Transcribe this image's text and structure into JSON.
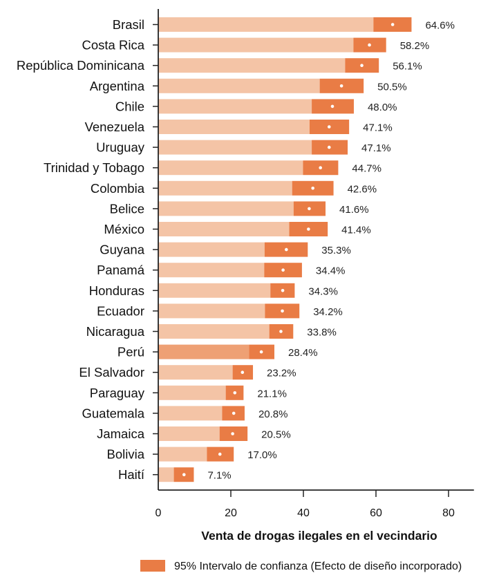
{
  "chart_data": {
    "type": "bar",
    "orientation": "horizontal",
    "categories": [
      "Brasil",
      "Costa Rica",
      "República Dominicana",
      "Argentina",
      "Chile",
      "Venezuela",
      "Uruguay",
      "Trinidad y Tobago",
      "Colombia",
      "Belice",
      "México",
      "Guyana",
      "Panamá",
      "Honduras",
      "Ecuador",
      "Nicaragua",
      "Perú",
      "El Salvador",
      "Paraguay",
      "Guatemala",
      "Jamaica",
      "Bolivia",
      "Haití"
    ],
    "values": [
      64.6,
      58.2,
      56.1,
      50.5,
      48.0,
      47.1,
      47.1,
      44.7,
      42.6,
      41.6,
      41.4,
      35.3,
      34.4,
      34.3,
      34.2,
      33.8,
      28.4,
      23.2,
      21.1,
      20.8,
      20.5,
      17.0,
      7.1
    ],
    "value_labels": [
      "64.6%",
      "58.2%",
      "56.1%",
      "50.5%",
      "48.0%",
      "47.1%",
      "47.1%",
      "44.7%",
      "42.6%",
      "41.6%",
      "41.4%",
      "35.3%",
      "34.4%",
      "34.3%",
      "34.2%",
      "33.8%",
      "28.4%",
      "23.2%",
      "21.1%",
      "20.8%",
      "20.5%",
      "17.0%",
      "7.1%"
    ],
    "ci_lower": [
      59.3,
      53.8,
      51.5,
      44.5,
      42.3,
      41.7,
      42.3,
      39.9,
      36.9,
      37.3,
      36.1,
      29.3,
      29.2,
      30.9,
      29.4,
      30.6,
      25.0,
      20.5,
      18.6,
      17.6,
      16.9,
      13.4,
      4.3
    ],
    "ci_upper": [
      69.8,
      62.8,
      60.8,
      56.6,
      53.9,
      52.6,
      52.2,
      49.6,
      48.3,
      46.1,
      46.7,
      41.2,
      39.6,
      37.6,
      38.9,
      37.2,
      32.0,
      26.1,
      23.5,
      23.8,
      24.6,
      20.8,
      9.8
    ],
    "highlighted_category": "Perú",
    "xlabel": "Venta de drogas ilegales en el vecindario",
    "ylabel": "",
    "xlim": [
      0,
      87
    ],
    "xticks": [
      0,
      20,
      40,
      60,
      80
    ],
    "grid": false,
    "legend": {
      "position": "bottom-right",
      "entries": [
        "95% Intervalo de confianza (Efecto de diseño incorporado)"
      ]
    },
    "colors": {
      "bar": "#f4c4a6",
      "bar_highlight": "#eea074",
      "ci": "#e97c45",
      "marker": "#ffffff",
      "axis": "#222222"
    }
  }
}
